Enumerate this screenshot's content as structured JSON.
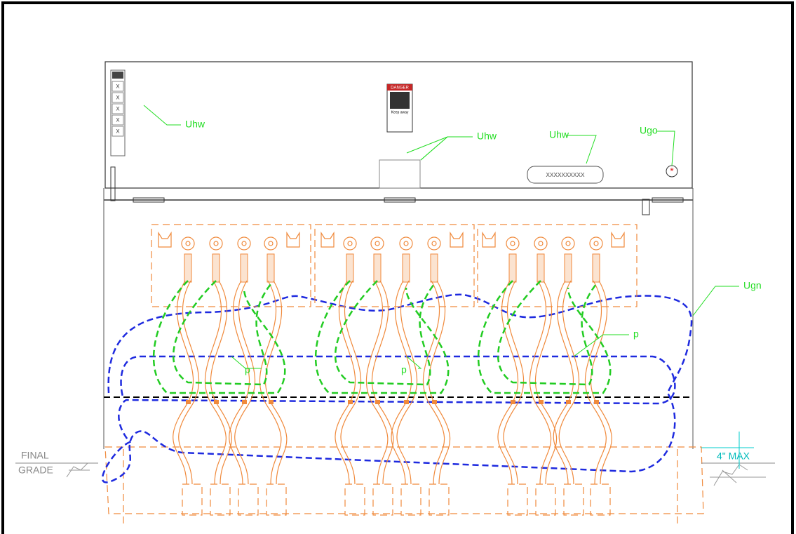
{
  "callouts": [
    "Uhw",
    "Uhw",
    "Uhw",
    "Ugo",
    "Ugn",
    "p",
    "p",
    "p"
  ],
  "grade": {
    "line1": "FINAL",
    "line2": "GRADE"
  },
  "dimension": "4\" MAX",
  "panel_marks": [
    "x",
    "x",
    "x",
    "x",
    "x"
  ],
  "terminal_block": "xxxxxxxxxx",
  "sign": {
    "title": "DANGER",
    "text": "Keep away"
  }
}
